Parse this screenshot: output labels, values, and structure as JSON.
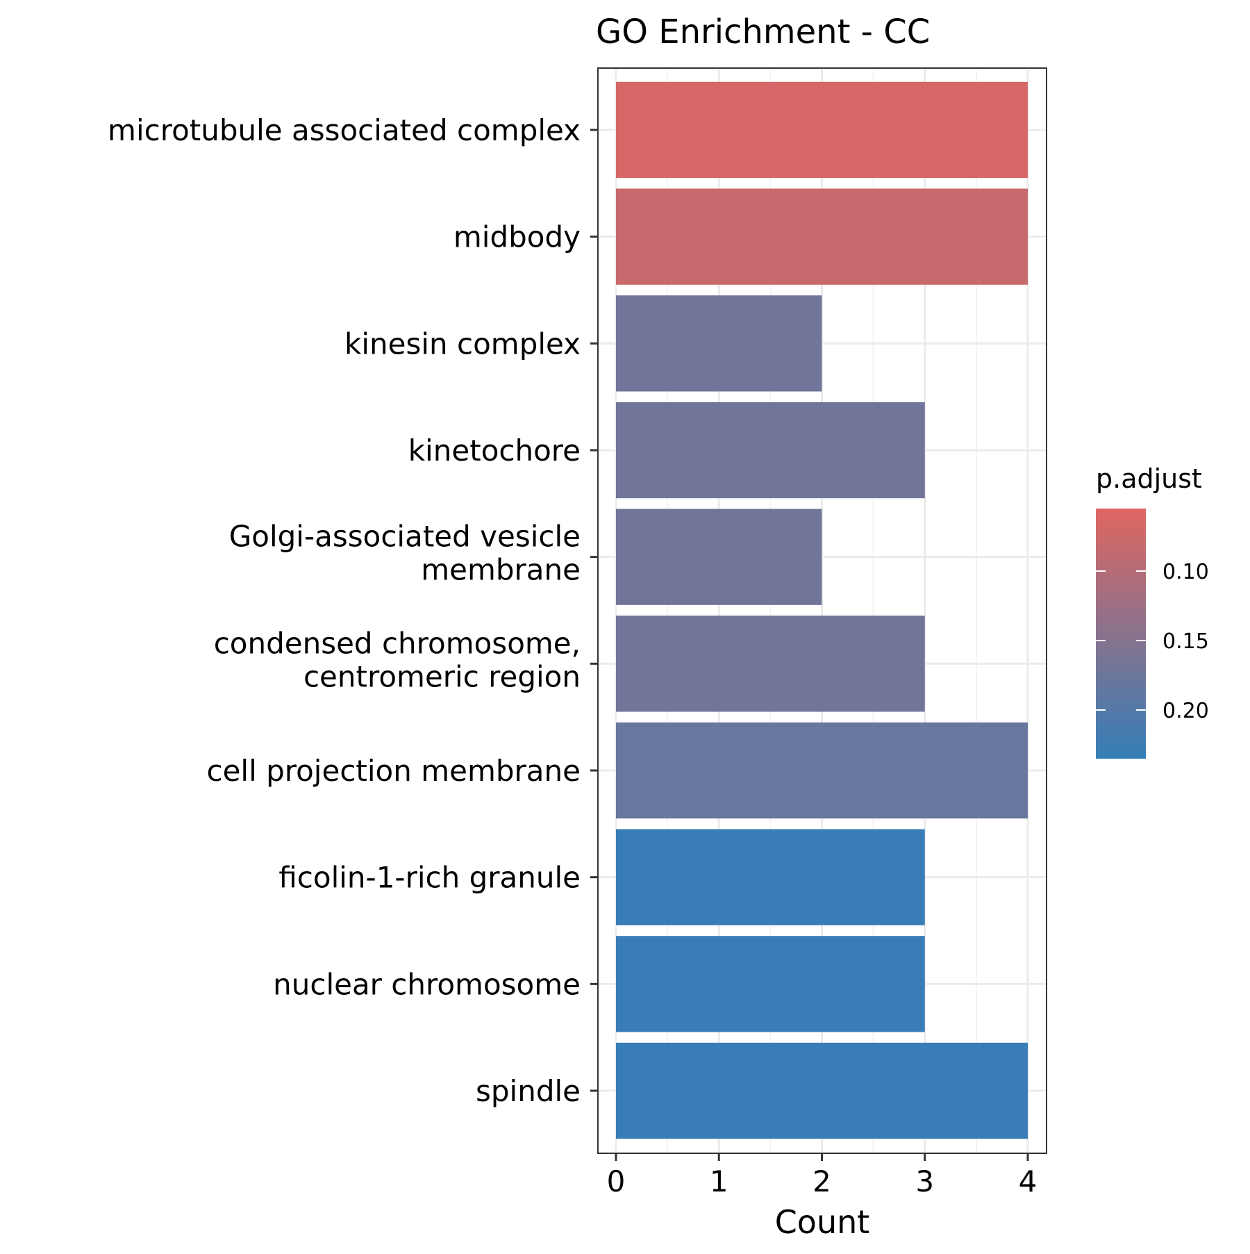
{
  "chart_data": {
    "type": "bar",
    "orientation": "horizontal",
    "title": "GO Enrichment - CC",
    "xlabel": "Count",
    "ylabel": "",
    "xlim": [
      0,
      4
    ],
    "x_ticks": [
      0,
      1,
      2,
      3,
      4
    ],
    "grid": true,
    "categories": [
      "microtubule associated complex",
      "midbody",
      "kinesin complex",
      "kinetochore",
      "Golgi-associated vesicle membrane",
      "condensed chromosome, centromeric region",
      "cell projection membrane",
      "ficolin-1-rich granule",
      "nuclear chromosome",
      "spindle"
    ],
    "category_lines": [
      [
        "microtubule associated complex"
      ],
      [
        "midbody"
      ],
      [
        "kinesin complex"
      ],
      [
        "kinetochore"
      ],
      [
        "Golgi-associated vesicle",
        "membrane"
      ],
      [
        "condensed chromosome,",
        "centromeric region"
      ],
      [
        "cell projection membrane"
      ],
      [
        "ficolin-1-rich granule"
      ],
      [
        "nuclear chromosome"
      ],
      [
        "spindle"
      ]
    ],
    "values": [
      4,
      4,
      2,
      3,
      2,
      3,
      4,
      3,
      3,
      4
    ],
    "p_adjust": [
      0.065,
      0.08,
      0.17,
      0.17,
      0.17,
      0.17,
      0.18,
      0.23,
      0.23,
      0.23
    ],
    "legend": {
      "title": "p.adjust",
      "placement": "right",
      "ticks": [
        0.1,
        0.15,
        0.2
      ],
      "tick_labels": [
        "0.10",
        "0.15",
        "0.20"
      ],
      "range": [
        0.055,
        0.235
      ],
      "low_color": "#E06661",
      "high_color": "#337EB8"
    },
    "colors": {
      "panel_border": "#333333",
      "grid_major": "#EBEBEB",
      "grid_minor": "#F3F3F3",
      "axis_tick": "#333333"
    }
  }
}
